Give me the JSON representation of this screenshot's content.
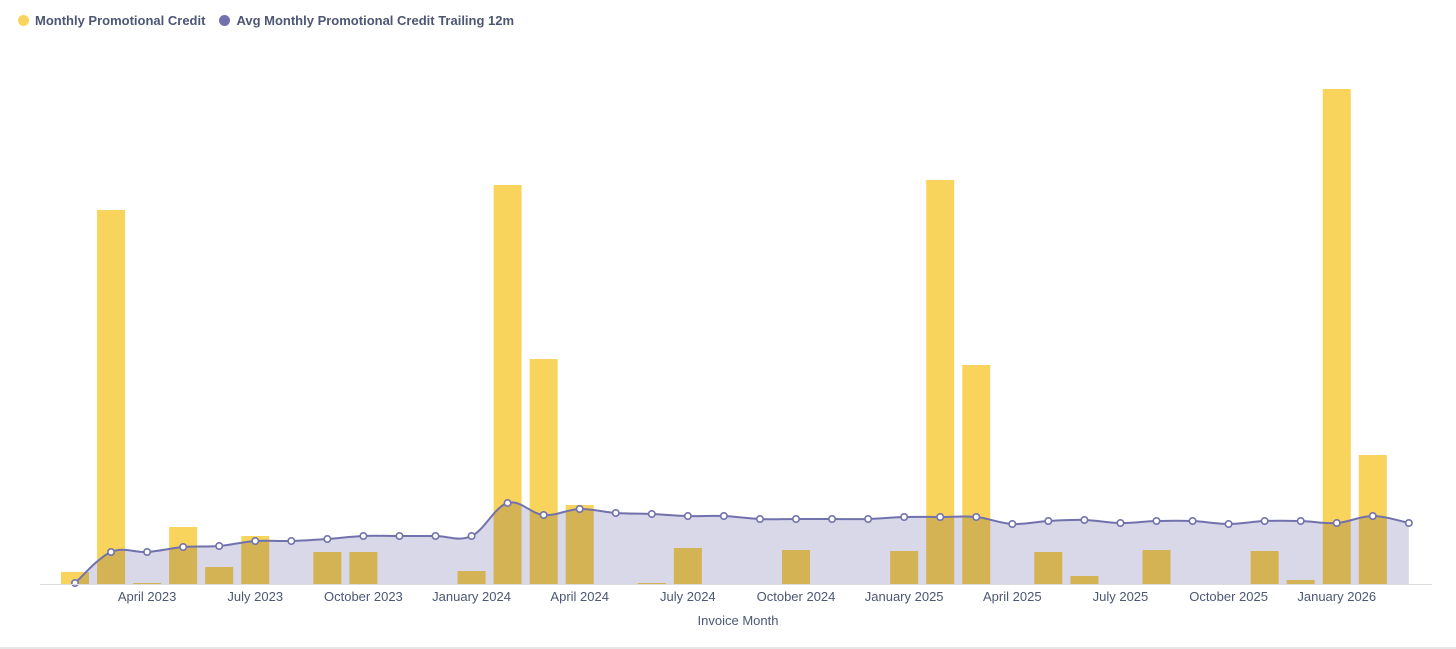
{
  "legend": {
    "series1_label": "Monthly Promotional Credit",
    "series2_label": "Avg Monthly Promotional Credit Trailing 12m"
  },
  "colors": {
    "bar": "#F9D45C",
    "line": "#7172AD",
    "area": "#D7D6E8",
    "axis_text": "#4c5773"
  },
  "chart_data": {
    "type": "bar",
    "xlabel": "Invoice Month",
    "ylabel": "",
    "tick_labels": [
      "April 2023",
      "July 2023",
      "October 2023",
      "January 2024",
      "April 2024",
      "July 2024",
      "October 2024",
      "January 2025",
      "April 2025",
      "July 2025",
      "October 2025",
      "January 2026"
    ],
    "categories": [
      "2023-02",
      "2023-03",
      "2023-04",
      "2023-05",
      "2023-06",
      "2023-07",
      "2023-08",
      "2023-09",
      "2023-10",
      "2023-11",
      "2023-12",
      "2024-01",
      "2024-02",
      "2024-03",
      "2024-04",
      "2024-05",
      "2024-06",
      "2024-07",
      "2024-08",
      "2024-09",
      "2024-10",
      "2024-11",
      "2024-12",
      "2025-01",
      "2025-02",
      "2025-03",
      "2025-04",
      "2025-05",
      "2025-06",
      "2025-07",
      "2025-08",
      "2025-09",
      "2025-10",
      "2025-11",
      "2025-12",
      "2026-01",
      "2026-02",
      "2026-03"
    ],
    "series": [
      {
        "name": "Monthly Promotional Credit",
        "type": "bar",
        "values": [
          12,
          374,
          1,
          57,
          17,
          48,
          0,
          32,
          32,
          0,
          0,
          13,
          399,
          225,
          79,
          0,
          1,
          36,
          0,
          0,
          34,
          0,
          0,
          33,
          404,
          219,
          0,
          32,
          8,
          0,
          34,
          0,
          0,
          33,
          4,
          495,
          129,
          0
        ]
      },
      {
        "name": "Avg Monthly Promotional Credit Trailing 12m",
        "type": "line",
        "values": [
          1,
          32,
          32,
          37,
          38,
          43,
          43,
          45,
          48,
          48,
          48,
          48,
          81,
          69,
          75,
          71,
          70,
          68,
          68,
          65,
          65,
          65,
          65,
          67,
          67,
          67,
          60,
          63,
          64,
          61,
          63,
          63,
          60,
          63,
          63,
          61,
          68,
          61
        ]
      }
    ],
    "ylim": [
      0,
      500
    ],
    "grid": false,
    "legend_position": "top-left"
  }
}
